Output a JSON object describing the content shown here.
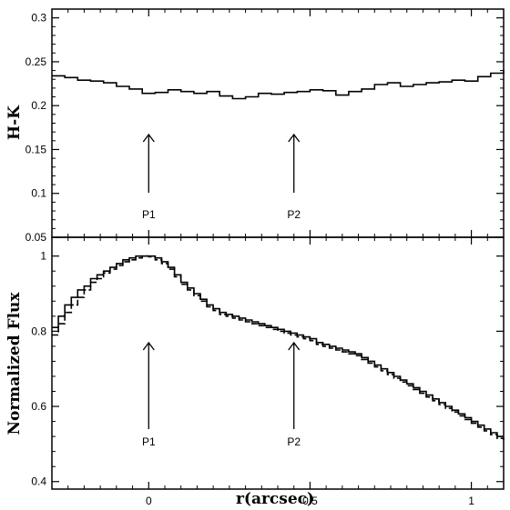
{
  "chart_data": [
    {
      "type": "line",
      "ylabel": "H-K",
      "xlim": [
        -0.3,
        1.1
      ],
      "ylim": [
        0.05,
        0.31
      ],
      "yticks": [
        0.05,
        0.1,
        0.15,
        0.2,
        0.25,
        0.3
      ],
      "ytick_labels": [
        "0.05",
        "0.1",
        "0.15",
        "0.2",
        "0.25",
        "0.3"
      ],
      "grid": false,
      "series": [
        {
          "step": true,
          "x": [
            -0.3,
            -0.26,
            -0.22,
            -0.18,
            -0.14,
            -0.1,
            -0.06,
            -0.02,
            0.02,
            0.06,
            0.1,
            0.14,
            0.18,
            0.22,
            0.26,
            0.3,
            0.34,
            0.38,
            0.42,
            0.46,
            0.5,
            0.54,
            0.58,
            0.62,
            0.66,
            0.7,
            0.74,
            0.78,
            0.82,
            0.86,
            0.9,
            0.94,
            0.98,
            1.02,
            1.06,
            1.1
          ],
          "values": [
            0.234,
            0.232,
            0.229,
            0.228,
            0.226,
            0.222,
            0.219,
            0.214,
            0.215,
            0.218,
            0.216,
            0.214,
            0.216,
            0.211,
            0.208,
            0.21,
            0.214,
            0.213,
            0.215,
            0.216,
            0.218,
            0.217,
            0.212,
            0.216,
            0.219,
            0.224,
            0.226,
            0.222,
            0.224,
            0.226,
            0.227,
            0.229,
            0.228,
            0.233,
            0.237,
            0.24
          ]
        }
      ],
      "annotations": [
        {
          "text": "P1",
          "x": 0.0
        },
        {
          "text": "P2",
          "x": 0.45
        }
      ]
    },
    {
      "type": "line",
      "xlabel": "r(arcsec)",
      "ylabel": "Normalized Flux",
      "xlim": [
        -0.3,
        1.1
      ],
      "ylim": [
        0.38,
        1.05
      ],
      "xticks": [
        0,
        0.5,
        1
      ],
      "xtick_labels": [
        "0",
        "0.5",
        "1"
      ],
      "yticks": [
        0.4,
        0.6,
        0.8,
        1
      ],
      "ytick_labels": [
        "0.4",
        "0.6",
        "0.8",
        "1"
      ],
      "grid": false,
      "series": [
        {
          "step": true,
          "dash": false,
          "x": [
            -0.3,
            -0.28,
            -0.26,
            -0.24,
            -0.22,
            -0.2,
            -0.18,
            -0.16,
            -0.14,
            -0.12,
            -0.1,
            -0.08,
            -0.06,
            -0.04,
            -0.02,
            0.0,
            0.02,
            0.04,
            0.06,
            0.08,
            0.1,
            0.12,
            0.14,
            0.16,
            0.18,
            0.2,
            0.22,
            0.24,
            0.26,
            0.28,
            0.3,
            0.32,
            0.34,
            0.36,
            0.38,
            0.4,
            0.42,
            0.44,
            0.46,
            0.48,
            0.5,
            0.52,
            0.54,
            0.56,
            0.58,
            0.6,
            0.62,
            0.64,
            0.66,
            0.68,
            0.7,
            0.72,
            0.74,
            0.76,
            0.78,
            0.8,
            0.82,
            0.84,
            0.86,
            0.88,
            0.9,
            0.92,
            0.94,
            0.96,
            0.98,
            1.0,
            1.02,
            1.04,
            1.06,
            1.08,
            1.1
          ],
          "values": [
            0.81,
            0.84,
            0.87,
            0.89,
            0.91,
            0.92,
            0.94,
            0.95,
            0.96,
            0.97,
            0.98,
            0.99,
            0.995,
            1.0,
            1.0,
            1.0,
            0.995,
            0.985,
            0.97,
            0.95,
            0.93,
            0.915,
            0.9,
            0.885,
            0.87,
            0.86,
            0.85,
            0.845,
            0.84,
            0.835,
            0.83,
            0.825,
            0.82,
            0.815,
            0.81,
            0.805,
            0.8,
            0.795,
            0.79,
            0.785,
            0.78,
            0.77,
            0.765,
            0.76,
            0.755,
            0.75,
            0.745,
            0.74,
            0.73,
            0.72,
            0.71,
            0.7,
            0.69,
            0.68,
            0.67,
            0.66,
            0.65,
            0.64,
            0.63,
            0.62,
            0.61,
            0.6,
            0.59,
            0.58,
            0.57,
            0.56,
            0.55,
            0.54,
            0.53,
            0.52,
            0.52
          ]
        },
        {
          "step": true,
          "dash": true,
          "x": [
            -0.3,
            -0.28,
            -0.26,
            -0.24,
            -0.22,
            -0.2,
            -0.18,
            -0.16,
            -0.14,
            -0.12,
            -0.1,
            -0.08,
            -0.06,
            -0.04,
            -0.02,
            0.0,
            0.02,
            0.04,
            0.06,
            0.08,
            0.1,
            0.12,
            0.14,
            0.16,
            0.18,
            0.2,
            0.22,
            0.24,
            0.26,
            0.28,
            0.3,
            0.32,
            0.34,
            0.36,
            0.38,
            0.4,
            0.42,
            0.44,
            0.46,
            0.48,
            0.5,
            0.52,
            0.54,
            0.56,
            0.58,
            0.6,
            0.62,
            0.64,
            0.66,
            0.68,
            0.7,
            0.72,
            0.74,
            0.76,
            0.78,
            0.8,
            0.82,
            0.84,
            0.86,
            0.88,
            0.9,
            0.92,
            0.94,
            0.96,
            0.98,
            1.0,
            1.02,
            1.04,
            1.06,
            1.08,
            1.1
          ],
          "values": [
            0.79,
            0.82,
            0.85,
            0.87,
            0.89,
            0.91,
            0.93,
            0.94,
            0.955,
            0.965,
            0.975,
            0.985,
            0.99,
            0.995,
            1.0,
            0.998,
            0.99,
            0.98,
            0.965,
            0.945,
            0.925,
            0.91,
            0.895,
            0.88,
            0.865,
            0.855,
            0.845,
            0.84,
            0.835,
            0.83,
            0.825,
            0.82,
            0.815,
            0.81,
            0.805,
            0.8,
            0.795,
            0.79,
            0.785,
            0.78,
            0.775,
            0.765,
            0.76,
            0.755,
            0.75,
            0.745,
            0.74,
            0.735,
            0.725,
            0.715,
            0.705,
            0.695,
            0.685,
            0.675,
            0.665,
            0.655,
            0.645,
            0.635,
            0.625,
            0.615,
            0.605,
            0.595,
            0.585,
            0.575,
            0.565,
            0.555,
            0.545,
            0.535,
            0.525,
            0.515,
            0.51
          ]
        }
      ],
      "annotations": [
        {
          "text": "P1",
          "x": 0.0
        },
        {
          "text": "P2",
          "x": 0.45
        }
      ]
    }
  ]
}
